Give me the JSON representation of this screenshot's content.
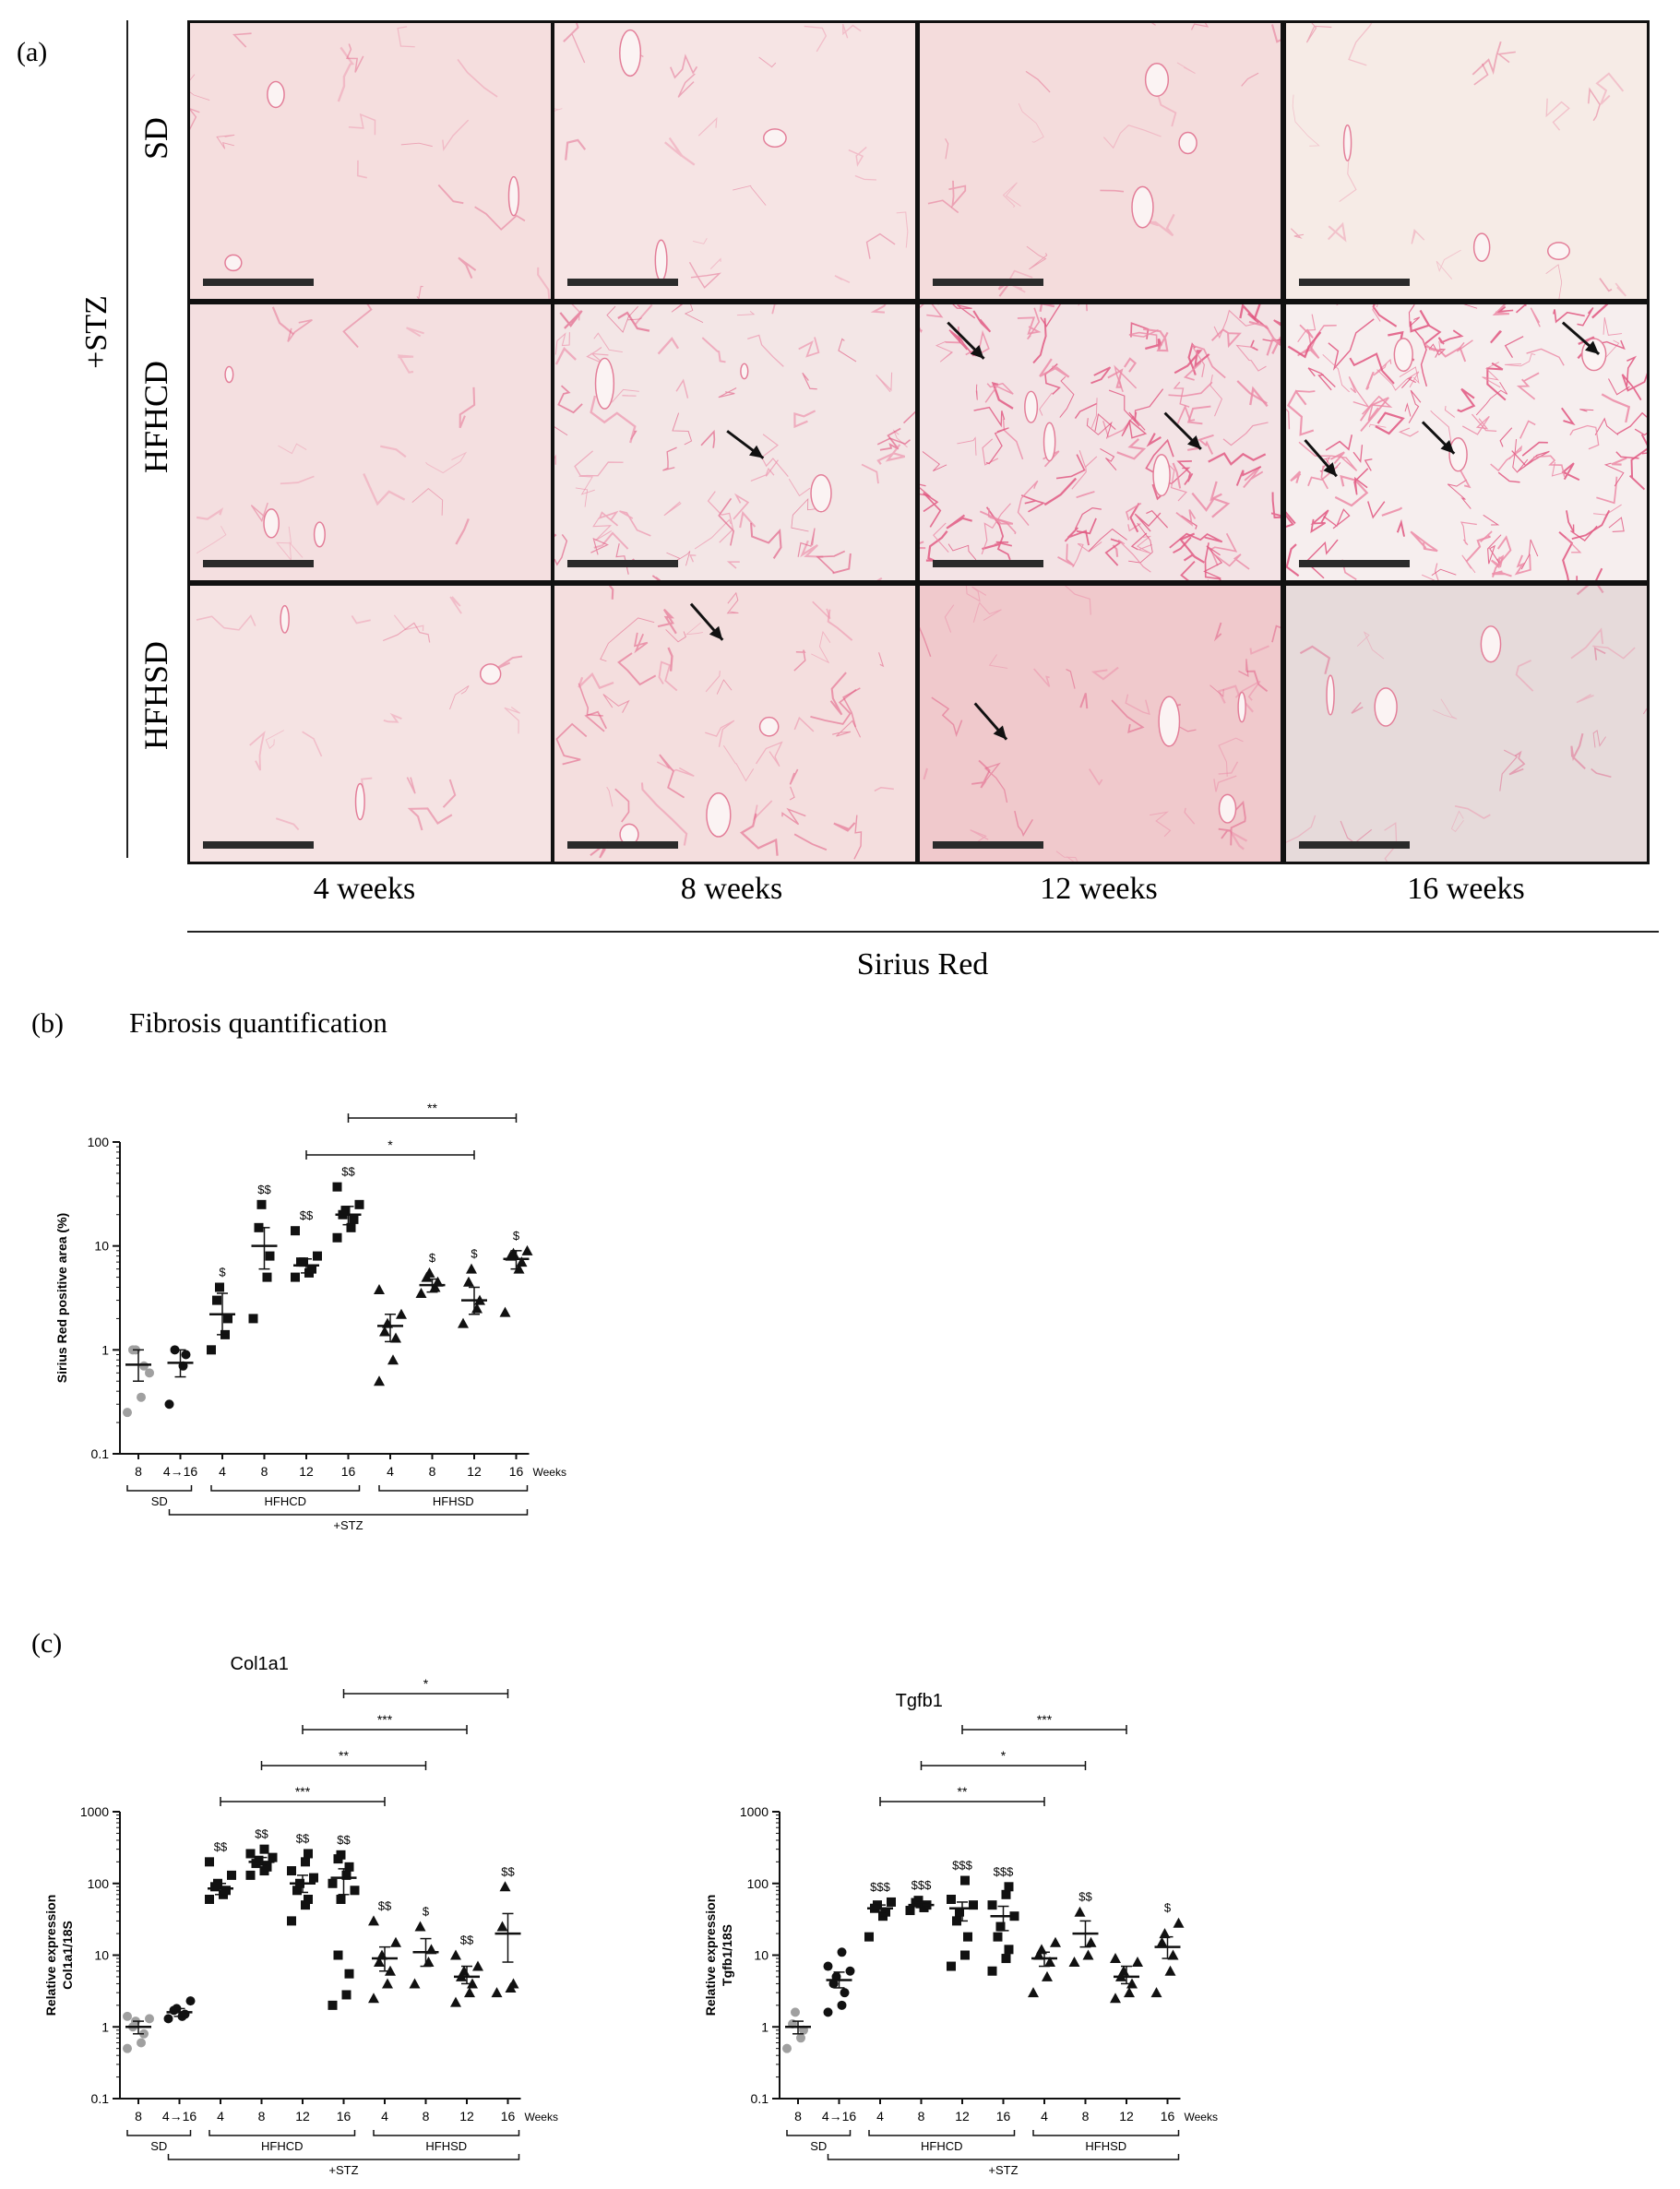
{
  "panel_a": {
    "letter": "(a)",
    "group_label": "+STZ",
    "row_labels": [
      "SD",
      "HFHCD",
      "HFHSD"
    ],
    "col_labels": [
      "4 weeks",
      "8 weeks",
      "12 weeks",
      "16 weeks"
    ],
    "stain_label": "Sirius Red"
  },
  "panel_b": {
    "letter": "(b)",
    "title": "Fibrosis quantification"
  },
  "panel_c": {
    "letter": "(c)"
  },
  "colors": {
    "gray": "#a0a0a0",
    "black": "#111111"
  },
  "chart_data": [
    {
      "id": "fibrosis",
      "type": "scatter",
      "title": "",
      "ylabel": "Sirius Red positive area (%)",
      "yscale": "log",
      "ylim": [
        0.1,
        100
      ],
      "yticks": [
        "0.1",
        "1",
        "10",
        "100"
      ],
      "xlabel_unit": "Weeks",
      "categories": [
        "8",
        "4→16",
        "4",
        "8",
        "12",
        "16",
        "4",
        "8",
        "12",
        "16"
      ],
      "groups": [
        {
          "label": "SD",
          "from": 0,
          "to": 1
        },
        {
          "label": "HFHCD",
          "from": 2,
          "to": 5
        },
        {
          "label": "HFHSD",
          "from": 6,
          "to": 9
        },
        {
          "label": "+STZ",
          "from": 1,
          "to": 9
        }
      ],
      "series": [
        {
          "name": "SD 8",
          "marker": "circle",
          "color": "gray",
          "mean": 0.72,
          "sem": [
            0.5,
            1.0
          ],
          "points": [
            0.25,
            0.35,
            0.7,
            1.0,
            1.0,
            0.6
          ],
          "sig": ""
        },
        {
          "name": "SD 4→16",
          "marker": "circle",
          "color": "black",
          "mean": 0.75,
          "sem": [
            0.55,
            1.0
          ],
          "points": [
            0.3,
            0.7,
            0.9,
            1.0
          ],
          "sig": ""
        },
        {
          "name": "HFHCD 4",
          "marker": "square",
          "color": "black",
          "mean": 2.2,
          "sem": [
            1.4,
            3.5
          ],
          "points": [
            1.0,
            1.4,
            2.0,
            3.0,
            4.0
          ],
          "sig": "$"
        },
        {
          "name": "HFHCD 8",
          "marker": "square",
          "color": "black",
          "mean": 10,
          "sem": [
            6,
            15
          ],
          "points": [
            2.0,
            5.0,
            8.0,
            15.0,
            25.0
          ],
          "sig": "$$"
        },
        {
          "name": "HFHCD 12",
          "marker": "square",
          "color": "black",
          "mean": 6.5,
          "sem": [
            5.5,
            7.5
          ],
          "points": [
            5.0,
            5.5,
            6.0,
            7.0,
            7.0,
            8.0,
            14.0
          ],
          "sig": "$$"
        },
        {
          "name": "HFHCD 16",
          "marker": "square",
          "color": "black",
          "mean": 20,
          "sem": [
            16,
            24
          ],
          "points": [
            12.0,
            15.0,
            18.0,
            20.0,
            22.0,
            25.0,
            37.0
          ],
          "sig": "$$"
        },
        {
          "name": "HFHSD 4",
          "marker": "triangle",
          "color": "black",
          "mean": 1.7,
          "sem": [
            1.2,
            2.2
          ],
          "points": [
            0.5,
            0.8,
            1.3,
            1.5,
            1.8,
            2.2,
            3.8
          ],
          "sig": ""
        },
        {
          "name": "HFHSD 8",
          "marker": "triangle",
          "color": "black",
          "mean": 4.2,
          "sem": [
            3.6,
            4.8
          ],
          "points": [
            3.5,
            4.0,
            4.5,
            5.0,
            5.5
          ],
          "sig": "$"
        },
        {
          "name": "HFHSD 12",
          "marker": "triangle",
          "color": "black",
          "mean": 3.0,
          "sem": [
            2.2,
            4.0
          ],
          "points": [
            1.8,
            2.5,
            3.0,
            4.5,
            6.0
          ],
          "sig": "$"
        },
        {
          "name": "HFHSD 16",
          "marker": "triangle",
          "color": "black",
          "mean": 7.5,
          "sem": [
            6.0,
            9.0
          ],
          "points": [
            2.3,
            6.0,
            7.0,
            8.0,
            8.5,
            9.0
          ],
          "sig": "$"
        }
      ],
      "brackets": [
        {
          "from": 4,
          "to": 8,
          "label": "*"
        },
        {
          "from": 5,
          "to": 9,
          "label": "**"
        }
      ]
    },
    {
      "id": "col1a1",
      "type": "scatter",
      "title": "Col1a1",
      "ylabel": "Relative expression",
      "ylabel2": "Col1a1/18S",
      "yscale": "log",
      "ylim": [
        0.1,
        1000
      ],
      "yticks": [
        "0.1",
        "1",
        "10",
        "100",
        "1000"
      ],
      "xlabel_unit": "Weeks",
      "categories": [
        "8",
        "4→16",
        "4",
        "8",
        "12",
        "16",
        "4",
        "8",
        "12",
        "16"
      ],
      "groups": [
        {
          "label": "SD",
          "from": 0,
          "to": 1
        },
        {
          "label": "HFHCD",
          "from": 2,
          "to": 5
        },
        {
          "label": "HFHSD",
          "from": 6,
          "to": 9
        },
        {
          "label": "+STZ",
          "from": 1,
          "to": 9
        }
      ],
      "series": [
        {
          "name": "SD 8",
          "marker": "circle",
          "color": "gray",
          "mean": 1.0,
          "sem": [
            0.8,
            1.2
          ],
          "points": [
            0.5,
            0.6,
            0.8,
            1.0,
            1.2,
            1.3,
            1.4
          ],
          "sig": ""
        },
        {
          "name": "SD 4→16",
          "marker": "circle",
          "color": "black",
          "mean": 1.6,
          "sem": [
            1.4,
            1.8
          ],
          "points": [
            1.3,
            1.4,
            1.5,
            1.7,
            1.8,
            2.3
          ],
          "sig": ""
        },
        {
          "name": "HFHCD 4",
          "marker": "square",
          "color": "black",
          "mean": 85,
          "sem": [
            70,
            100
          ],
          "points": [
            60,
            70,
            80,
            90,
            100,
            130,
            200
          ],
          "sig": "$$"
        },
        {
          "name": "HFHCD 8",
          "marker": "square",
          "color": "black",
          "mean": 200,
          "sem": [
            180,
            230
          ],
          "points": [
            130,
            150,
            170,
            190,
            210,
            230,
            260,
            300
          ],
          "sig": "$$"
        },
        {
          "name": "HFHCD 12",
          "marker": "square",
          "color": "black",
          "mean": 100,
          "sem": [
            75,
            130
          ],
          "points": [
            30,
            50,
            60,
            80,
            100,
            120,
            150,
            200,
            260
          ],
          "sig": "$$"
        },
        {
          "name": "HFHCD 16",
          "marker": "square",
          "color": "black",
          "mean": 120,
          "sem": [
            70,
            160
          ],
          "points": [
            2.0,
            2.8,
            5.5,
            10,
            60,
            80,
            100,
            130,
            170,
            220,
            250
          ],
          "sig": "$$"
        },
        {
          "name": "HFHSD 4",
          "marker": "triangle",
          "color": "black",
          "mean": 9,
          "sem": [
            6,
            13
          ],
          "points": [
            2.5,
            4,
            6,
            8,
            10,
            15,
            30
          ],
          "sig": "$$"
        },
        {
          "name": "HFHSD 8",
          "marker": "triangle",
          "color": "black",
          "mean": 11,
          "sem": [
            7,
            17
          ],
          "points": [
            4,
            8,
            12,
            25
          ],
          "sig": "$"
        },
        {
          "name": "HFHSD 12",
          "marker": "triangle",
          "color": "black",
          "mean": 5,
          "sem": [
            4,
            7
          ],
          "points": [
            2.2,
            3,
            4,
            5,
            6,
            7,
            10
          ],
          "sig": "$$"
        },
        {
          "name": "HFHSD 16",
          "marker": "triangle",
          "color": "black",
          "mean": 20,
          "sem": [
            8,
            38
          ],
          "points": [
            3,
            3.5,
            4,
            25,
            90
          ],
          "sig": "$$"
        }
      ],
      "brackets": [
        {
          "from": 2,
          "to": 6,
          "label": "***"
        },
        {
          "from": 3,
          "to": 7,
          "label": "**"
        },
        {
          "from": 4,
          "to": 8,
          "label": "***"
        },
        {
          "from": 5,
          "to": 9,
          "label": "*"
        }
      ]
    },
    {
      "id": "tgfb1",
      "type": "scatter",
      "title": "Tgfb1",
      "ylabel": "Relative expression",
      "ylabel2": "Tgfb1/18S",
      "yscale": "log",
      "ylim": [
        0.1,
        1000
      ],
      "yticks": [
        "0.1",
        "1",
        "10",
        "100",
        "1000"
      ],
      "xlabel_unit": "Weeks",
      "categories": [
        "8",
        "4→16",
        "4",
        "8",
        "12",
        "16",
        "4",
        "8",
        "12",
        "16"
      ],
      "groups": [
        {
          "label": "SD",
          "from": 0,
          "to": 1
        },
        {
          "label": "HFHCD",
          "from": 2,
          "to": 5
        },
        {
          "label": "HFHSD",
          "from": 6,
          "to": 9
        },
        {
          "label": "+STZ",
          "from": 1,
          "to": 9
        }
      ],
      "series": [
        {
          "name": "SD 8",
          "marker": "circle",
          "color": "gray",
          "mean": 1.0,
          "sem": [
            0.8,
            1.2
          ],
          "points": [
            0.5,
            0.7,
            0.9,
            1.1,
            1.6
          ],
          "sig": ""
        },
        {
          "name": "SD 4→16",
          "marker": "circle",
          "color": "black",
          "mean": 4.5,
          "sem": [
            3.5,
            5.8
          ],
          "points": [
            1.6,
            2.0,
            3,
            4,
            5,
            6,
            7,
            11
          ],
          "sig": ""
        },
        {
          "name": "HFHCD 4",
          "marker": "square",
          "color": "black",
          "mean": 45,
          "sem": [
            40,
            50
          ],
          "points": [
            18,
            35,
            40,
            45,
            50,
            55
          ],
          "sig": "$$$"
        },
        {
          "name": "HFHCD 8",
          "marker": "square",
          "color": "black",
          "mean": 50,
          "sem": [
            46,
            54
          ],
          "points": [
            42,
            46,
            50,
            54,
            58
          ],
          "sig": "$$$"
        },
        {
          "name": "HFHCD 12",
          "marker": "square",
          "color": "black",
          "mean": 45,
          "sem": [
            30,
            55
          ],
          "points": [
            7,
            10,
            18,
            30,
            40,
            50,
            60,
            110
          ],
          "sig": "$$$"
        },
        {
          "name": "HFHCD 16",
          "marker": "square",
          "color": "black",
          "mean": 35,
          "sem": [
            22,
            48
          ],
          "points": [
            6,
            9,
            12,
            18,
            25,
            35,
            50,
            70,
            90
          ],
          "sig": "$$$"
        },
        {
          "name": "HFHSD 4",
          "marker": "triangle",
          "color": "black",
          "mean": 9,
          "sem": [
            7,
            11
          ],
          "points": [
            3,
            5,
            8,
            10,
            12,
            15
          ],
          "sig": ""
        },
        {
          "name": "HFHSD 8",
          "marker": "triangle",
          "color": "black",
          "mean": 20,
          "sem": [
            13,
            30
          ],
          "points": [
            8,
            10,
            15,
            40
          ],
          "sig": "$$"
        },
        {
          "name": "HFHSD 12",
          "marker": "triangle",
          "color": "black",
          "mean": 5,
          "sem": [
            4,
            7
          ],
          "points": [
            2.5,
            3,
            4,
            5,
            6,
            8,
            9
          ],
          "sig": ""
        },
        {
          "name": "HFHSD 16",
          "marker": "triangle",
          "color": "black",
          "mean": 13,
          "sem": [
            9,
            18
          ],
          "points": [
            3,
            6,
            10,
            15,
            20,
            28
          ],
          "sig": "$"
        }
      ],
      "brackets": [
        {
          "from": 2,
          "to": 6,
          "label": "**"
        },
        {
          "from": 3,
          "to": 7,
          "label": "*"
        },
        {
          "from": 4,
          "to": 8,
          "label": "***"
        }
      ]
    }
  ]
}
